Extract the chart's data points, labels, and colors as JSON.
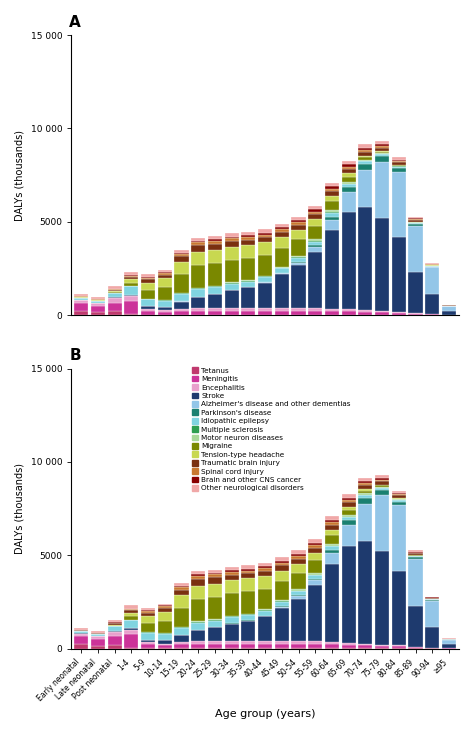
{
  "age_groups": [
    "Early neonatal",
    "Late neonatal",
    "Post neonatal",
    "1-4",
    "5-9",
    "10-14",
    "15-19",
    "20-24",
    "25-29",
    "30-34",
    "35-39",
    "40-44",
    "45-49",
    "50-54",
    "55-59",
    "60-64",
    "65-69",
    "70-74",
    "75-79",
    "80-84",
    "85-89",
    "90-94",
    "≥95"
  ],
  "categories": [
    "Tetanus",
    "Meningitis",
    "Encephalitis",
    "Stroke",
    "Alzheimer's disease and other dementias",
    "Parkinson's disease",
    "Idiopathic epilepsy",
    "Multiple sclerosis",
    "Motor neuron diseases",
    "Migraine",
    "Tension-type headache",
    "Traumatic brain injury",
    "Spinal cord injury",
    "Brain and other CNS cancer",
    "Other neurological disorders"
  ],
  "colors": [
    "#c0396e",
    "#cc3399",
    "#e8a0cc",
    "#1e3a6e",
    "#93c6e8",
    "#1a8070",
    "#80d4e0",
    "#2e9e50",
    "#a8d898",
    "#7a8800",
    "#c8d850",
    "#7a3010",
    "#c87830",
    "#880000",
    "#f0a8a8"
  ],
  "data": {
    "Tetanus": [
      250,
      150,
      200,
      60,
      25,
      20,
      25,
      25,
      25,
      25,
      25,
      25,
      25,
      25,
      25,
      25,
      25,
      20,
      20,
      15,
      10,
      8,
      3
    ],
    "Meningitis": [
      400,
      350,
      450,
      700,
      200,
      150,
      200,
      220,
      220,
      220,
      220,
      220,
      220,
      220,
      220,
      200,
      180,
      160,
      130,
      100,
      65,
      35,
      12
    ],
    "Encephalitis": [
      150,
      150,
      250,
      250,
      130,
      90,
      120,
      140,
      140,
      140,
      140,
      140,
      140,
      140,
      140,
      130,
      110,
      90,
      70,
      55,
      28,
      14,
      4
    ],
    "Stroke": [
      30,
      20,
      60,
      80,
      120,
      180,
      380,
      600,
      750,
      950,
      1100,
      1350,
      1800,
      2300,
      3000,
      4200,
      5200,
      5500,
      5000,
      4000,
      2200,
      1100,
      220
    ],
    "Alzheimer's disease and other dementias": [
      5,
      5,
      5,
      5,
      5,
      5,
      8,
      8,
      8,
      8,
      15,
      25,
      60,
      130,
      280,
      550,
      1100,
      2000,
      3000,
      3500,
      2500,
      1400,
      250
    ],
    "Parkinson's disease": [
      3,
      3,
      3,
      3,
      3,
      3,
      5,
      5,
      5,
      5,
      8,
      12,
      18,
      40,
      90,
      180,
      250,
      320,
      280,
      200,
      100,
      50,
      12
    ],
    "Idiopathic epilepsy": [
      80,
      80,
      220,
      450,
      380,
      330,
      380,
      380,
      340,
      330,
      290,
      260,
      240,
      210,
      190,
      190,
      170,
      150,
      110,
      90,
      55,
      28,
      8
    ],
    "Multiple sclerosis": [
      2,
      2,
      2,
      2,
      15,
      35,
      55,
      65,
      65,
      65,
      55,
      50,
      45,
      35,
      25,
      25,
      18,
      12,
      8,
      6,
      4,
      2,
      1
    ],
    "Motor neuron diseases": [
      2,
      2,
      2,
      2,
      3,
      8,
      12,
      18,
      18,
      22,
      28,
      38,
      55,
      75,
      95,
      115,
      95,
      75,
      55,
      38,
      22,
      12,
      4
    ],
    "Migraine": [
      15,
      15,
      40,
      180,
      480,
      680,
      1000,
      1200,
      1200,
      1200,
      1200,
      1100,
      1000,
      900,
      700,
      480,
      280,
      130,
      70,
      35,
      18,
      8,
      2
    ],
    "Tension-type headache": [
      15,
      15,
      40,
      180,
      380,
      480,
      680,
      700,
      700,
      700,
      680,
      680,
      580,
      480,
      380,
      280,
      180,
      90,
      45,
      22,
      12,
      6,
      2
    ],
    "Traumatic brain injury": [
      45,
      45,
      90,
      140,
      190,
      190,
      290,
      380,
      340,
      290,
      270,
      270,
      270,
      270,
      270,
      270,
      240,
      210,
      190,
      150,
      95,
      48,
      14
    ],
    "Spinal cord injury": [
      18,
      18,
      25,
      45,
      75,
      95,
      140,
      170,
      170,
      160,
      150,
      150,
      140,
      140,
      130,
      120,
      110,
      90,
      72,
      55,
      38,
      18,
      5
    ],
    "Brain and other CNS cancer": [
      8,
      8,
      18,
      45,
      55,
      55,
      55,
      65,
      75,
      85,
      95,
      105,
      115,
      125,
      135,
      145,
      135,
      125,
      95,
      65,
      38,
      18,
      5
    ],
    "Other neurological disorders": [
      90,
      90,
      140,
      180,
      140,
      90,
      140,
      180,
      180,
      180,
      180,
      180,
      180,
      180,
      180,
      180,
      180,
      180,
      160,
      135,
      90,
      45,
      14
    ]
  },
  "ylabel": "DALYs (thousands)",
  "xlabel": "Age group (years)",
  "ylim": [
    0,
    15000
  ],
  "yticks": [
    0,
    5000,
    10000,
    15000
  ],
  "background_color": "#ffffff",
  "label_A": "A",
  "label_B": "B"
}
